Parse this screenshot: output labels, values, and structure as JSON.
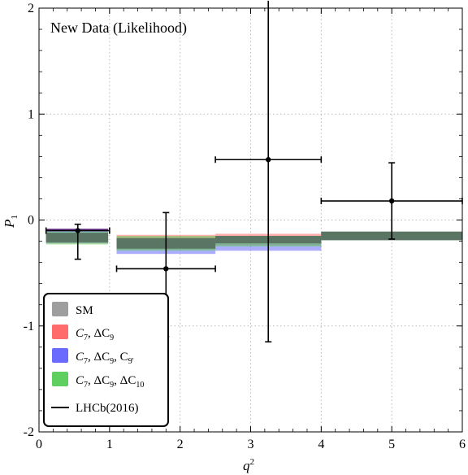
{
  "chart_data": {
    "type": "bar",
    "annotation": "New Data (Likelihood)",
    "xlabel": "q",
    "xlabel_sup": "2",
    "ylabel": "P",
    "ylabel_sub": "1",
    "xlim": [
      0,
      6
    ],
    "ylim": [
      -2,
      2
    ],
    "x_ticks": [
      0,
      1,
      2,
      3,
      4,
      5,
      6
    ],
    "y_ticks": [
      -2,
      -1,
      0,
      1,
      2
    ],
    "x_tick_labels": [
      "0",
      "1",
      "2",
      "3",
      "4",
      "5",
      "6"
    ],
    "y_tick_labels": [
      "-2",
      "-1",
      "0",
      "1",
      "2"
    ],
    "grid": true,
    "legend_position": "bottom-left",
    "series": [
      {
        "name": "SM",
        "color": "#9e9e9e",
        "bins": [
          {
            "x0": 0.1,
            "x1": 0.98,
            "lo": -0.21,
            "hi": -0.12
          },
          {
            "x0": 1.1,
            "x1": 2.5,
            "lo": -0.27,
            "hi": -0.17
          },
          {
            "x0": 2.5,
            "x1": 4.0,
            "lo": -0.22,
            "hi": -0.15
          },
          {
            "x0": 4.0,
            "x1": 6.0,
            "lo": -0.19,
            "hi": -0.11
          }
        ]
      },
      {
        "name": "C7, ΔC9",
        "name_parts": [
          "C",
          "7",
          ", ΔC",
          "9",
          ""
        ],
        "color": "#ff6a6a",
        "bins": [
          {
            "x0": 0.1,
            "x1": 0.98,
            "lo": -0.22,
            "hi": -0.12
          },
          {
            "x0": 1.1,
            "x1": 2.5,
            "lo": -0.28,
            "hi": -0.14
          },
          {
            "x0": 2.5,
            "x1": 4.0,
            "lo": -0.24,
            "hi": -0.13
          },
          {
            "x0": 4.0,
            "x1": 6.0,
            "lo": -0.19,
            "hi": -0.11
          }
        ]
      },
      {
        "name": "C7, ΔC9, C9'",
        "name_parts": [
          "C",
          "7",
          ", ΔC",
          "9",
          ", C",
          "9'"
        ],
        "color": "#6a6aff",
        "bins": [
          {
            "x0": 0.1,
            "x1": 0.98,
            "lo": -0.22,
            "hi": -0.09
          },
          {
            "x0": 1.1,
            "x1": 2.5,
            "lo": -0.32,
            "hi": -0.18
          },
          {
            "x0": 2.5,
            "x1": 4.0,
            "lo": -0.29,
            "hi": -0.16
          },
          {
            "x0": 4.0,
            "x1": 6.0,
            "lo": -0.19,
            "hi": -0.11
          }
        ]
      },
      {
        "name": "C7, ΔC9, ΔC10",
        "name_parts": [
          "C",
          "7",
          ", ΔC",
          "9",
          ", ΔC",
          "10"
        ],
        "color": "#5fcf5f",
        "bins": [
          {
            "x0": 0.1,
            "x1": 0.98,
            "lo": -0.23,
            "hi": -0.11
          },
          {
            "x0": 1.1,
            "x1": 2.5,
            "lo": -0.29,
            "hi": -0.15
          },
          {
            "x0": 2.5,
            "x1": 4.0,
            "lo": -0.25,
            "hi": -0.15
          },
          {
            "x0": 4.0,
            "x1": 6.0,
            "lo": -0.19,
            "hi": -0.11
          }
        ]
      }
    ],
    "overlap_color": "#56705e",
    "data_points": {
      "name": "LHCb(2016)",
      "points": [
        {
          "x": 0.55,
          "xerr_lo": 0.45,
          "xerr_hi": 0.45,
          "y": -0.1,
          "yerr_lo": 0.27,
          "yerr_hi": 0.06
        },
        {
          "x": 1.8,
          "xerr_lo": 0.7,
          "xerr_hi": 0.7,
          "y": -0.46,
          "yerr_lo": 0.64,
          "yerr_hi": 0.53
        },
        {
          "x": 3.25,
          "xerr_lo": 0.75,
          "xerr_hi": 0.75,
          "y": 0.57,
          "yerr_lo": 1.72,
          "yerr_hi": 1.5
        },
        {
          "x": 5.0,
          "xerr_lo": 1.0,
          "xerr_hi": 1.0,
          "y": 0.18,
          "yerr_lo": 0.36,
          "yerr_hi": 0.36
        }
      ]
    }
  }
}
